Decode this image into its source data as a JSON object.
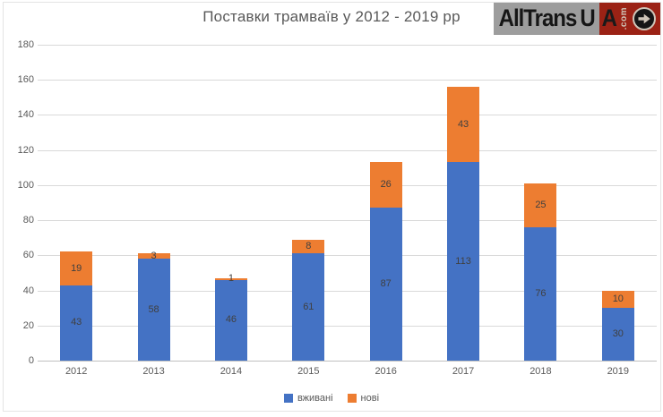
{
  "title": "Поставки трамваїв у 2012 - 2019 рр",
  "logo": {
    "text_main": "AllTrans",
    "text_u": "U",
    "text_a": "A",
    "text_com": ".com",
    "arrow_icon": "arrow-right-circle-icon",
    "colors": {
      "left_bg": "#9d9d9d",
      "letters": "#161616",
      "right_bg": "#9b2215",
      "com_text": "#cfc5b8"
    }
  },
  "chart_data": {
    "type": "bar",
    "stacked": true,
    "title": "Поставки трамваїв у 2012 - 2019 рр",
    "categories": [
      "2012",
      "2013",
      "2014",
      "2015",
      "2016",
      "2017",
      "2018",
      "2019"
    ],
    "series": [
      {
        "name": "вживані",
        "color": "#4472C4",
        "values": [
          43,
          58,
          46,
          61,
          87,
          113,
          76,
          30
        ]
      },
      {
        "name": "нові",
        "color": "#ED7D31",
        "values": [
          19,
          3,
          1,
          8,
          26,
          43,
          25,
          10
        ]
      }
    ],
    "ylim": [
      0,
      180
    ],
    "yticks": [
      0,
      20,
      40,
      60,
      80,
      100,
      120,
      140,
      160,
      180
    ],
    "grid": true,
    "legend_position": "bottom",
    "gridline_color": "#d9d9d9",
    "axis_line_color": "#bfbfbf",
    "axis_text_color": "#595959",
    "data_label_color": "#404040"
  }
}
